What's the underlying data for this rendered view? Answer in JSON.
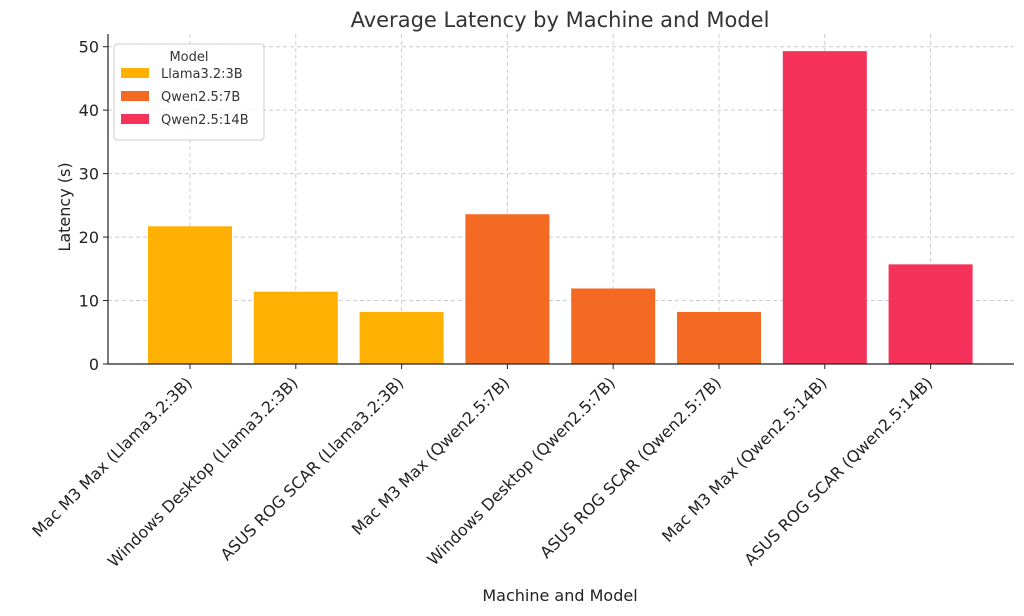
{
  "chart_data": {
    "type": "bar",
    "title": "Average Latency by Machine and Model",
    "xlabel": "Machine and Model",
    "ylabel": "Latency (s)",
    "ylim": [
      0,
      52
    ],
    "yticks": [
      0,
      10,
      20,
      30,
      40,
      50
    ],
    "grid": true,
    "legend_title": "Model",
    "legend_position": "top-left",
    "categories": [
      "Mac M3 Max (Llama3.2:3B)",
      "Windows Desktop (Llama3.2:3B)",
      "ASUS ROG SCAR (Llama3.2:3B)",
      "Mac M3 Max (Qwen2.5:7B)",
      "Windows Desktop (Qwen2.5:7B)",
      "ASUS ROG SCAR (Qwen2.5:7B)",
      "Mac M3 Max (Qwen2.5:14B)",
      "ASUS ROG SCAR (Qwen2.5:14B)"
    ],
    "values": [
      21.7,
      11.4,
      8.2,
      23.6,
      11.9,
      8.2,
      49.3,
      15.7
    ],
    "bar_series": [
      0,
      0,
      0,
      1,
      1,
      1,
      2,
      2
    ],
    "series": [
      {
        "name": "Llama3.2:3B",
        "color": "#FFB000"
      },
      {
        "name": "Qwen2.5:7B",
        "color": "#F46A22"
      },
      {
        "name": "Qwen2.5:14B",
        "color": "#F5325A"
      }
    ]
  }
}
